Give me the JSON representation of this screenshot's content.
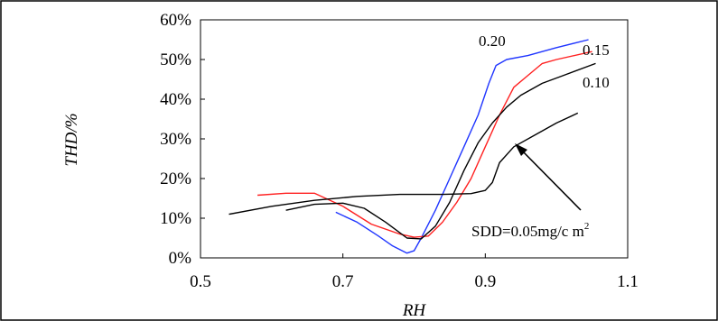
{
  "chart_data": {
    "type": "line",
    "xlabel": "RH",
    "ylabel": "THD/%",
    "xlim": [
      0.5,
      1.1
    ],
    "ylim": [
      0,
      60
    ],
    "xticks": [
      "0.5",
      "0.7",
      "0.9",
      "1.1"
    ],
    "yticks": [
      "0%",
      "10%",
      "20%",
      "30%",
      "40%",
      "50%",
      "60%"
    ],
    "grid": false,
    "series": [
      {
        "name": "0.20",
        "color": "#1f35ff",
        "points": [
          [
            0.69,
            11.5
          ],
          [
            0.72,
            9
          ],
          [
            0.75,
            5.5
          ],
          [
            0.77,
            3
          ],
          [
            0.79,
            1.2
          ],
          [
            0.8,
            1.8
          ],
          [
            0.81,
            5
          ],
          [
            0.83,
            12
          ],
          [
            0.85,
            20
          ],
          [
            0.87,
            28
          ],
          [
            0.89,
            36
          ],
          [
            0.905,
            44
          ],
          [
            0.915,
            48.5
          ],
          [
            0.93,
            50
          ],
          [
            0.96,
            51
          ],
          [
            1.0,
            53
          ],
          [
            1.045,
            55
          ]
        ]
      },
      {
        "name": "0.15",
        "color": "#ff2020",
        "points": [
          [
            0.58,
            15.8
          ],
          [
            0.62,
            16.3
          ],
          [
            0.66,
            16.3
          ],
          [
            0.7,
            13
          ],
          [
            0.74,
            8.5
          ],
          [
            0.78,
            6
          ],
          [
            0.8,
            5.2
          ],
          [
            0.82,
            5.5
          ],
          [
            0.84,
            9
          ],
          [
            0.86,
            14
          ],
          [
            0.88,
            20
          ],
          [
            0.9,
            28
          ],
          [
            0.92,
            36
          ],
          [
            0.94,
            43
          ],
          [
            0.96,
            46
          ],
          [
            0.98,
            49
          ],
          [
            1.0,
            50
          ],
          [
            1.05,
            52
          ]
        ]
      },
      {
        "name": "0.10",
        "color": "#000000",
        "points": [
          [
            0.62,
            12
          ],
          [
            0.66,
            13.5
          ],
          [
            0.7,
            13.8
          ],
          [
            0.73,
            12.5
          ],
          [
            0.76,
            9
          ],
          [
            0.79,
            5
          ],
          [
            0.81,
            4.8
          ],
          [
            0.83,
            8
          ],
          [
            0.85,
            14
          ],
          [
            0.87,
            22
          ],
          [
            0.89,
            29
          ],
          [
            0.91,
            34
          ],
          [
            0.93,
            38
          ],
          [
            0.95,
            41
          ],
          [
            0.98,
            44
          ],
          [
            1.01,
            46
          ],
          [
            1.055,
            49
          ]
        ]
      },
      {
        "name": "SDD=0.05mg/cm²",
        "color": "#000000",
        "points": [
          [
            0.54,
            11
          ],
          [
            0.6,
            13
          ],
          [
            0.66,
            14.5
          ],
          [
            0.72,
            15.5
          ],
          [
            0.78,
            16
          ],
          [
            0.84,
            16
          ],
          [
            0.88,
            16.2
          ],
          [
            0.9,
            17
          ],
          [
            0.91,
            19
          ],
          [
            0.92,
            24
          ],
          [
            0.94,
            28
          ],
          [
            0.97,
            31
          ],
          [
            1.0,
            34
          ],
          [
            1.03,
            36.5
          ]
        ]
      }
    ],
    "annotations": [
      {
        "text": "0.20",
        "series": 0
      },
      {
        "text": "0.15",
        "series": 1
      },
      {
        "text": "0.10",
        "series": 2
      }
    ],
    "arrow_label": {
      "base": "SDD=0.05mg/c m",
      "sup": "2"
    }
  }
}
